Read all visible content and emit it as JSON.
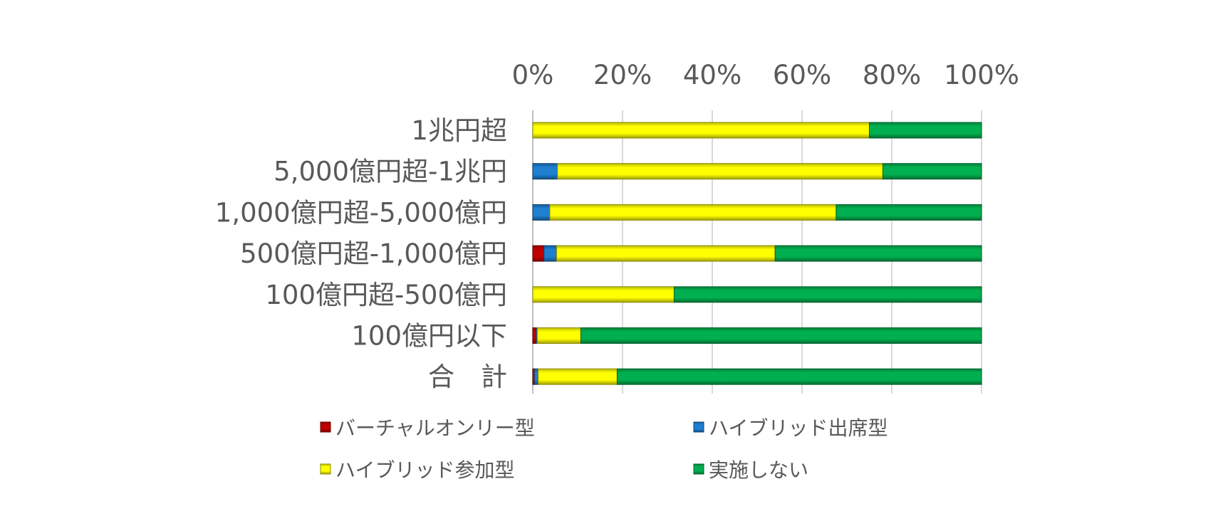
{
  "chart_data": {
    "type": "bar",
    "orientation": "horizontal",
    "stacked": "percent",
    "categories": [
      "1兆円超",
      "5,000億円超-1兆円",
      "1,000億円超-5,000億円",
      "500億円超-1,000億円",
      "100億円超-500億円",
      "100億円以下",
      "合　計"
    ],
    "series": [
      {
        "name": "バーチャルオンリー型",
        "color": "#c00000",
        "values": [
          0,
          0,
          0,
          2.5,
          0,
          0.8,
          0.4
        ]
      },
      {
        "name": "ハイブリッド出席型",
        "color": "#1f7fd1",
        "values": [
          0,
          5.5,
          3.8,
          2.8,
          0,
          0.2,
          0.8
        ]
      },
      {
        "name": "ハイブリッド参加型",
        "color": "#ffff00",
        "values": [
          75,
          72.5,
          63.8,
          48.7,
          31.5,
          9.7,
          17.6
        ]
      },
      {
        "name": "実施しない",
        "color": "#00b050",
        "values": [
          25,
          22,
          32.4,
          46,
          68.5,
          89.3,
          81.2
        ]
      }
    ],
    "xlim": [
      0,
      100
    ],
    "xticks": [
      "0%",
      "20%",
      "40%",
      "60%",
      "80%",
      "100%"
    ],
    "xaxis_position": "top",
    "grid": true,
    "legend_position": "bottom",
    "title": "",
    "xlabel": "",
    "ylabel": ""
  }
}
